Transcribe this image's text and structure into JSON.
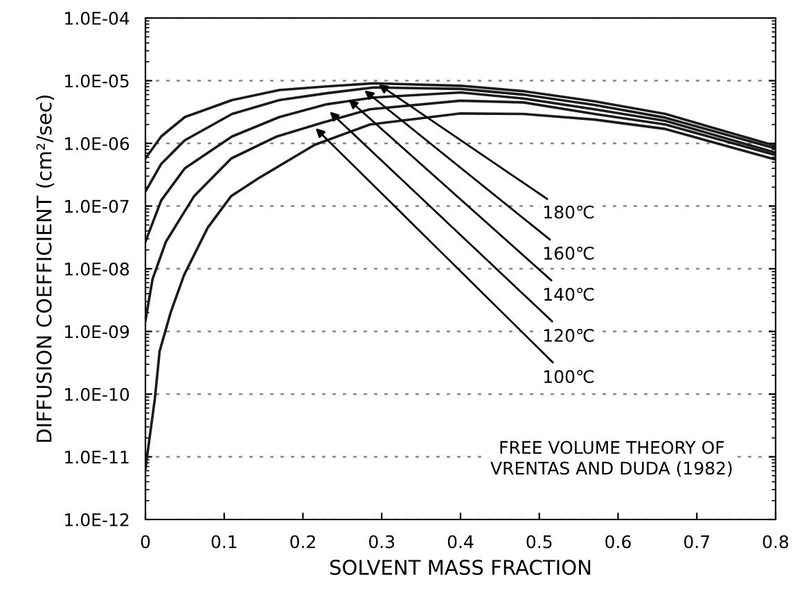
{
  "chart_data": {
    "type": "line",
    "xlabel": "SOLVENT MASS FRACTION",
    "ylabel": "DIFFUSION COEFFICIENT (cm²/sec)",
    "log": "y",
    "grid": "y",
    "marker": "none",
    "line_style": "solid",
    "xlim": [
      0,
      0.8
    ],
    "xticks": [
      0,
      0.1,
      0.2,
      0.3,
      0.4,
      0.5,
      0.6,
      0.7,
      0.8
    ],
    "ylim": [
      1e-12,
      0.0001
    ],
    "yticks": [
      {
        "value": 1e-12,
        "label": "1.0E-12"
      },
      {
        "value": 1e-11,
        "label": "1.0E-11"
      },
      {
        "value": 1e-10,
        "label": "1.0E-10"
      },
      {
        "value": 1e-09,
        "label": "1.0E-09"
      },
      {
        "value": 1e-08,
        "label": "1.0E-08"
      },
      {
        "value": 1e-07,
        "label": "1.0E-07"
      },
      {
        "value": 1e-06,
        "label": "1.0E-06"
      },
      {
        "value": 1e-05,
        "label": "1.0E-05"
      },
      {
        "value": 0.0001,
        "label": "1.0E-04"
      }
    ],
    "series": [
      {
        "color": "#1a1a1a",
        "x": [
          0,
          0.02,
          0.05,
          0.11,
          0.17,
          0.23,
          0.29,
          0.4,
          0.48,
          0.57,
          0.66,
          0.8
        ],
        "values": [
          5.75e-07,
          1.29e-06,
          2.63e-06,
          4.9e-06,
          7.1e-06,
          8.1e-06,
          9.1e-06,
          8.3e-06,
          6.8e-06,
          4.7e-06,
          2.95e-06,
          9.1e-07
        ]
      },
      {
        "color": "#1a1a1a",
        "x": [
          0,
          0.02,
          0.05,
          0.11,
          0.17,
          0.23,
          0.29,
          0.4,
          0.48,
          0.57,
          0.66,
          0.8
        ],
        "values": [
          1.7e-07,
          4.7e-07,
          1.12e-06,
          2.95e-06,
          4.9e-06,
          6.3e-06,
          7.8e-06,
          7.4e-06,
          6e-06,
          4.1e-06,
          2.57e-06,
          8.3e-07
        ]
      },
      {
        "color": "#1a1a1a",
        "x": [
          0,
          0.02,
          0.05,
          0.11,
          0.17,
          0.23,
          0.29,
          0.4,
          0.48,
          0.57,
          0.66,
          0.8
        ],
        "values": [
          2.7e-08,
          1.23e-07,
          4e-07,
          1.29e-06,
          2.63e-06,
          4.2e-06,
          5.4e-06,
          6.5e-06,
          5.2e-06,
          3.5e-06,
          2.29e-06,
          7.1e-07
        ]
      },
      {
        "color": "#1a1a1a",
        "x": [
          0,
          0.009,
          0.026,
          0.062,
          0.109,
          0.167,
          0.225,
          0.285,
          0.4,
          0.48,
          0.57,
          0.66,
          0.8
        ],
        "values": [
          1.48e-09,
          6.8e-09,
          2.7e-08,
          1.45e-07,
          5.75e-07,
          1.29e-06,
          2.14e-06,
          3.5e-06,
          4.8e-06,
          4.5e-06,
          2.95e-06,
          2e-06,
          6.5e-07
        ]
      },
      {
        "color": "#1a1a1a",
        "x": [
          0,
          0.012,
          0.018,
          0.032,
          0.049,
          0.079,
          0.109,
          0.144,
          0.215,
          0.285,
          0.4,
          0.48,
          0.57,
          0.66,
          0.8
        ],
        "values": [
          6.5e-12,
          8.5e-11,
          4.8e-10,
          2e-09,
          7.9e-09,
          4.5e-08,
          1.45e-07,
          2.8e-07,
          9.5e-07,
          2e-06,
          3e-06,
          2.95e-06,
          2.4e-06,
          1.7e-06,
          5.5e-07
        ]
      }
    ],
    "annotations": [
      {
        "text": "180℃",
        "x": 0.296,
        "y": 8.7e-06
      },
      {
        "text": "160℃",
        "x": 0.278,
        "y": 7e-06
      },
      {
        "text": "140℃",
        "x": 0.258,
        "y": 5e-06
      },
      {
        "text": "120℃",
        "x": 0.234,
        "y": 3.2e-06
      },
      {
        "text": "100℃",
        "x": 0.216,
        "y": 1.75e-06
      },
      "FREE VOLUME THEORY OF\nVRENTAS AND DUDA (1982)"
    ]
  }
}
